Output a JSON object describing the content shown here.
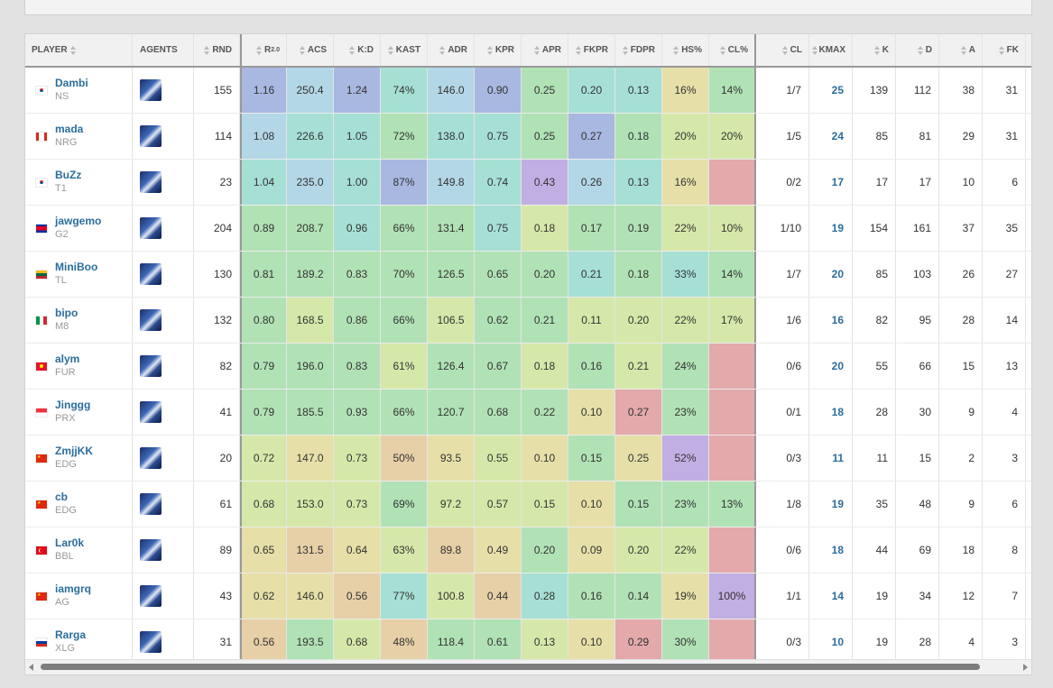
{
  "headers": {
    "player": "PLAYER",
    "agents": "AGENTS",
    "rnd": "RND",
    "rating": "R",
    "rating_sup": "2.0",
    "acs": "ACS",
    "kd": "K:D",
    "kast": "KAST",
    "adr": "ADR",
    "kpr": "KPR",
    "apr": "APR",
    "fkpr": "FKPR",
    "fdpr": "FDPR",
    "hs": "HS%",
    "clp": "CL%",
    "cl": "CL",
    "kmax": "KMAX",
    "k": "K",
    "d": "D",
    "a": "A",
    "fk": "FK"
  },
  "colors": {
    "blue": "#a9b8e0",
    "lightblue": "#b3d7e6",
    "teal": "#a6e0d4",
    "green": "#b1e2b5",
    "yellowgreen": "#d6e8a9",
    "khaki": "#e6e0a8",
    "tan": "#e7cfa8",
    "pink": "#e3a9ab",
    "purple": "#c1afe3",
    "link": "#2b6d9c"
  },
  "rows": [
    {
      "name": "Dambi",
      "team": "NS",
      "flag": "kr",
      "agent_icon": "agent-portrait-icon",
      "rnd": "155",
      "rating": "1.16",
      "acs": "250.4",
      "kd": "1.24",
      "kast": "74%",
      "adr": "146.0",
      "kpr": "0.90",
      "apr": "0.25",
      "fkpr": "0.20",
      "fdpr": "0.13",
      "hs": "16%",
      "clp": "14%",
      "cl": "1/7",
      "kmax": "25",
      "k": "139",
      "d": "112",
      "a": "38",
      "fk": "31",
      "bg": {
        "rating": "blue",
        "acs": "lightblue",
        "kd": "blue",
        "kast": "teal",
        "adr": "lightblue",
        "kpr": "blue",
        "apr": "green",
        "fkpr": "teal",
        "fdpr": "teal",
        "hs": "khaki",
        "clp": "green"
      }
    },
    {
      "name": "mada",
      "team": "NRG",
      "flag": "ca",
      "agent_icon": "agent-portrait-icon",
      "rnd": "114",
      "rating": "1.08",
      "acs": "226.6",
      "kd": "1.05",
      "kast": "72%",
      "adr": "138.0",
      "kpr": "0.75",
      "apr": "0.25",
      "fkpr": "0.27",
      "fdpr": "0.18",
      "hs": "20%",
      "clp": "20%",
      "cl": "1/5",
      "kmax": "24",
      "k": "85",
      "d": "81",
      "a": "29",
      "fk": "31",
      "bg": {
        "rating": "lightblue",
        "acs": "teal",
        "kd": "teal",
        "kast": "green",
        "adr": "teal",
        "kpr": "teal",
        "apr": "green",
        "fkpr": "blue",
        "fdpr": "green",
        "hs": "yellowgreen",
        "clp": "yellowgreen"
      }
    },
    {
      "name": "BuZz",
      "team": "T1",
      "flag": "kr",
      "agent_icon": "agent-portrait-icon",
      "rnd": "23",
      "rating": "1.04",
      "acs": "235.0",
      "kd": "1.00",
      "kast": "87%",
      "adr": "149.8",
      "kpr": "0.74",
      "apr": "0.43",
      "fkpr": "0.26",
      "fdpr": "0.13",
      "hs": "16%",
      "clp": "",
      "cl": "0/2",
      "kmax": "17",
      "k": "17",
      "d": "17",
      "a": "10",
      "fk": "6",
      "bg": {
        "rating": "teal",
        "acs": "lightblue",
        "kd": "teal",
        "kast": "blue",
        "adr": "lightblue",
        "kpr": "teal",
        "apr": "purple",
        "fkpr": "lightblue",
        "fdpr": "teal",
        "hs": "khaki",
        "clp": "pink"
      }
    },
    {
      "name": "jawgemo",
      "team": "G2",
      "flag": "kh",
      "agent_icon": "agent-portrait-icon",
      "rnd": "204",
      "rating": "0.89",
      "acs": "208.7",
      "kd": "0.96",
      "kast": "66%",
      "adr": "131.4",
      "kpr": "0.75",
      "apr": "0.18",
      "fkpr": "0.17",
      "fdpr": "0.19",
      "hs": "22%",
      "clp": "10%",
      "cl": "1/10",
      "kmax": "19",
      "k": "154",
      "d": "161",
      "a": "37",
      "fk": "35",
      "bg": {
        "rating": "green",
        "acs": "green",
        "kd": "teal",
        "kast": "green",
        "adr": "green",
        "kpr": "teal",
        "apr": "yellowgreen",
        "fkpr": "green",
        "fdpr": "green",
        "hs": "yellowgreen",
        "clp": "yellowgreen"
      }
    },
    {
      "name": "MiniBoo",
      "team": "TL",
      "flag": "lt",
      "agent_icon": "agent-portrait-icon",
      "rnd": "130",
      "rating": "0.81",
      "acs": "189.2",
      "kd": "0.83",
      "kast": "70%",
      "adr": "126.5",
      "kpr": "0.65",
      "apr": "0.20",
      "fkpr": "0.21",
      "fdpr": "0.18",
      "hs": "33%",
      "clp": "14%",
      "cl": "1/7",
      "kmax": "20",
      "k": "85",
      "d": "103",
      "a": "26",
      "fk": "27",
      "bg": {
        "rating": "green",
        "acs": "green",
        "kd": "green",
        "kast": "green",
        "adr": "green",
        "kpr": "green",
        "apr": "green",
        "fkpr": "teal",
        "fdpr": "green",
        "hs": "teal",
        "clp": "green"
      }
    },
    {
      "name": "bipo",
      "team": "M8",
      "flag": "it",
      "agent_icon": "agent-portrait-icon",
      "rnd": "132",
      "rating": "0.80",
      "acs": "168.5",
      "kd": "0.86",
      "kast": "66%",
      "adr": "106.5",
      "kpr": "0.62",
      "apr": "0.21",
      "fkpr": "0.11",
      "fdpr": "0.20",
      "hs": "22%",
      "clp": "17%",
      "cl": "1/6",
      "kmax": "16",
      "k": "82",
      "d": "95",
      "a": "28",
      "fk": "14",
      "bg": {
        "rating": "green",
        "acs": "yellowgreen",
        "kd": "green",
        "kast": "green",
        "adr": "yellowgreen",
        "kpr": "green",
        "apr": "green",
        "fkpr": "yellowgreen",
        "fdpr": "yellowgreen",
        "hs": "yellowgreen",
        "clp": "yellowgreen"
      }
    },
    {
      "name": "alym",
      "team": "FUR",
      "flag": "kg",
      "agent_icon": "agent-portrait-icon",
      "rnd": "82",
      "rating": "0.79",
      "acs": "196.0",
      "kd": "0.83",
      "kast": "61%",
      "adr": "126.4",
      "kpr": "0.67",
      "apr": "0.18",
      "fkpr": "0.16",
      "fdpr": "0.21",
      "hs": "24%",
      "clp": "",
      "cl": "0/6",
      "kmax": "20",
      "k": "55",
      "d": "66",
      "a": "15",
      "fk": "13",
      "bg": {
        "rating": "green",
        "acs": "green",
        "kd": "green",
        "kast": "yellowgreen",
        "adr": "green",
        "kpr": "green",
        "apr": "yellowgreen",
        "fkpr": "green",
        "fdpr": "yellowgreen",
        "hs": "green",
        "clp": "pink"
      }
    },
    {
      "name": "Jinggg",
      "team": "PRX",
      "flag": "sg",
      "agent_icon": "agent-portrait-icon",
      "rnd": "41",
      "rating": "0.79",
      "acs": "185.5",
      "kd": "0.93",
      "kast": "66%",
      "adr": "120.7",
      "kpr": "0.68",
      "apr": "0.22",
      "fkpr": "0.10",
      "fdpr": "0.27",
      "hs": "23%",
      "clp": "",
      "cl": "0/1",
      "kmax": "18",
      "k": "28",
      "d": "30",
      "a": "9",
      "fk": "4",
      "bg": {
        "rating": "green",
        "acs": "green",
        "kd": "green",
        "kast": "green",
        "adr": "green",
        "kpr": "green",
        "apr": "green",
        "fkpr": "khaki",
        "fdpr": "pink",
        "hs": "green",
        "clp": "pink"
      }
    },
    {
      "name": "ZmjjKK",
      "team": "EDG",
      "flag": "cn",
      "agent_icon": "agent-portrait-icon",
      "rnd": "20",
      "rating": "0.72",
      "acs": "147.0",
      "kd": "0.73",
      "kast": "50%",
      "adr": "93.5",
      "kpr": "0.55",
      "apr": "0.10",
      "fkpr": "0.15",
      "fdpr": "0.25",
      "hs": "52%",
      "clp": "",
      "cl": "0/3",
      "kmax": "11",
      "k": "11",
      "d": "15",
      "a": "2",
      "fk": "3",
      "bg": {
        "rating": "yellowgreen",
        "acs": "khaki",
        "kd": "yellowgreen",
        "kast": "tan",
        "adr": "khaki",
        "kpr": "yellowgreen",
        "apr": "khaki",
        "fkpr": "green",
        "fdpr": "khaki",
        "hs": "purple",
        "clp": "pink"
      }
    },
    {
      "name": "cb",
      "team": "EDG",
      "flag": "cn",
      "agent_icon": "agent-portrait-icon",
      "rnd": "61",
      "rating": "0.68",
      "acs": "153.0",
      "kd": "0.73",
      "kast": "69%",
      "adr": "97.2",
      "kpr": "0.57",
      "apr": "0.15",
      "fkpr": "0.10",
      "fdpr": "0.15",
      "hs": "23%",
      "clp": "13%",
      "cl": "1/8",
      "kmax": "19",
      "k": "35",
      "d": "48",
      "a": "9",
      "fk": "6",
      "bg": {
        "rating": "yellowgreen",
        "acs": "yellowgreen",
        "kd": "yellowgreen",
        "kast": "green",
        "adr": "yellowgreen",
        "kpr": "yellowgreen",
        "apr": "yellowgreen",
        "fkpr": "khaki",
        "fdpr": "green",
        "hs": "green",
        "clp": "green"
      }
    },
    {
      "name": "Lar0k",
      "team": "BBL",
      "flag": "tr",
      "agent_icon": "agent-portrait-icon",
      "rnd": "89",
      "rating": "0.65",
      "acs": "131.5",
      "kd": "0.64",
      "kast": "63%",
      "adr": "89.8",
      "kpr": "0.49",
      "apr": "0.20",
      "fkpr": "0.09",
      "fdpr": "0.20",
      "hs": "22%",
      "clp": "",
      "cl": "0/6",
      "kmax": "18",
      "k": "44",
      "d": "69",
      "a": "18",
      "fk": "8",
      "bg": {
        "rating": "khaki",
        "acs": "tan",
        "kd": "khaki",
        "kast": "yellowgreen",
        "adr": "tan",
        "kpr": "khaki",
        "apr": "green",
        "fkpr": "khaki",
        "fdpr": "yellowgreen",
        "hs": "yellowgreen",
        "clp": "pink"
      }
    },
    {
      "name": "iamgrq",
      "team": "AG",
      "flag": "cn",
      "agent_icon": "agent-portrait-icon",
      "rnd": "43",
      "rating": "0.62",
      "acs": "146.0",
      "kd": "0.56",
      "kast": "77%",
      "adr": "100.8",
      "kpr": "0.44",
      "apr": "0.28",
      "fkpr": "0.16",
      "fdpr": "0.14",
      "hs": "19%",
      "clp": "100%",
      "cl": "1/1",
      "kmax": "14",
      "k": "19",
      "d": "34",
      "a": "12",
      "fk": "7",
      "bg": {
        "rating": "khaki",
        "acs": "khaki",
        "kd": "tan",
        "kast": "teal",
        "adr": "yellowgreen",
        "kpr": "tan",
        "apr": "teal",
        "fkpr": "green",
        "fdpr": "green",
        "hs": "khaki",
        "clp": "purple"
      }
    },
    {
      "name": "Rarga",
      "team": "XLG",
      "flag": "ru",
      "agent_icon": "agent-portrait-icon",
      "rnd": "31",
      "rating": "0.56",
      "acs": "193.5",
      "kd": "0.68",
      "kast": "48%",
      "adr": "118.4",
      "kpr": "0.61",
      "apr": "0.13",
      "fkpr": "0.10",
      "fdpr": "0.29",
      "hs": "30%",
      "clp": "",
      "cl": "0/3",
      "kmax": "10",
      "k": "19",
      "d": "28",
      "a": "4",
      "fk": "3",
      "bg": {
        "rating": "tan",
        "acs": "green",
        "kd": "yellowgreen",
        "kast": "tan",
        "adr": "green",
        "kpr": "green",
        "apr": "yellowgreen",
        "fkpr": "khaki",
        "fdpr": "pink",
        "hs": "green",
        "clp": "pink"
      }
    }
  ]
}
